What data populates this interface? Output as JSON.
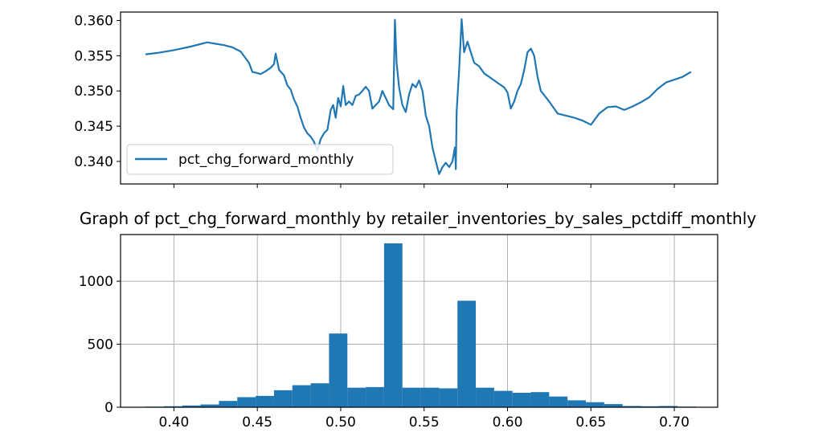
{
  "chart_data": [
    {
      "type": "line",
      "title": "",
      "xlabel": "",
      "ylabel": "",
      "xlim": [
        0.368,
        0.726
      ],
      "ylim": [
        0.3368,
        0.3612
      ],
      "xticks": [
        0.4,
        0.45,
        0.5,
        0.55,
        0.6,
        0.65,
        0.7
      ],
      "xtick_labels_visible": false,
      "yticks": [
        0.34,
        0.345,
        0.35,
        0.355,
        0.36
      ],
      "ytick_labels": [
        "0.340",
        "0.345",
        "0.350",
        "0.355",
        "0.360"
      ],
      "grid": false,
      "legend": {
        "position": "lower-left",
        "entries": [
          "pct_chg_forward_monthly"
        ]
      },
      "series": [
        {
          "name": "pct_chg_forward_monthly",
          "color": "#1f77b4",
          "x": [
            0.383,
            0.39,
            0.4,
            0.41,
            0.42,
            0.425,
            0.43,
            0.435,
            0.44,
            0.445,
            0.447,
            0.449,
            0.452,
            0.455,
            0.458,
            0.46,
            0.461,
            0.463,
            0.466,
            0.468,
            0.47,
            0.472,
            0.474,
            0.476,
            0.478,
            0.48,
            0.482,
            0.484,
            0.486,
            0.488,
            0.49,
            0.492,
            0.494,
            0.4955,
            0.497,
            0.4985,
            0.5,
            0.5015,
            0.503,
            0.505,
            0.507,
            0.509,
            0.511,
            0.513,
            0.515,
            0.517,
            0.519,
            0.521,
            0.523,
            0.525,
            0.527,
            0.529,
            0.5315,
            0.5325,
            0.5335,
            0.535,
            0.537,
            0.539,
            0.541,
            0.543,
            0.545,
            0.547,
            0.549,
            0.551,
            0.553,
            0.555,
            0.557,
            0.559,
            0.561,
            0.563,
            0.565,
            0.567,
            0.5685,
            0.569,
            0.5695,
            0.571,
            0.5725,
            0.574,
            0.576,
            0.578,
            0.58,
            0.583,
            0.586,
            0.589,
            0.592,
            0.595,
            0.598,
            0.6,
            0.602,
            0.604,
            0.606,
            0.608,
            0.61,
            0.612,
            0.614,
            0.616,
            0.618,
            0.62,
            0.625,
            0.63,
            0.635,
            0.64,
            0.645,
            0.65,
            0.655,
            0.66,
            0.665,
            0.67,
            0.675,
            0.68,
            0.685,
            0.69,
            0.695,
            0.7,
            0.705,
            0.71
          ],
          "y": [
            0.3552,
            0.3554,
            0.3558,
            0.3563,
            0.3569,
            0.3567,
            0.3565,
            0.3562,
            0.3556,
            0.354,
            0.3527,
            0.3526,
            0.3524,
            0.3528,
            0.3533,
            0.3538,
            0.3553,
            0.353,
            0.3522,
            0.3508,
            0.3502,
            0.3488,
            0.3478,
            0.3462,
            0.3448,
            0.344,
            0.3435,
            0.3428,
            0.3415,
            0.3432,
            0.344,
            0.3445,
            0.3473,
            0.348,
            0.3462,
            0.349,
            0.3478,
            0.3507,
            0.348,
            0.3485,
            0.348,
            0.3493,
            0.3495,
            0.35,
            0.3506,
            0.35,
            0.3475,
            0.348,
            0.3485,
            0.35,
            0.349,
            0.348,
            0.3474,
            0.3601,
            0.354,
            0.3505,
            0.348,
            0.347,
            0.3495,
            0.351,
            0.3505,
            0.3515,
            0.35,
            0.3465,
            0.345,
            0.342,
            0.34,
            0.3382,
            0.3392,
            0.3398,
            0.3392,
            0.34,
            0.342,
            0.3389,
            0.347,
            0.353,
            0.3602,
            0.3555,
            0.357,
            0.3555,
            0.354,
            0.3535,
            0.3525,
            0.352,
            0.3515,
            0.351,
            0.3505,
            0.3498,
            0.3475,
            0.3485,
            0.35,
            0.351,
            0.353,
            0.3555,
            0.356,
            0.355,
            0.352,
            0.35,
            0.3485,
            0.3468,
            0.3465,
            0.3462,
            0.3458,
            0.3452,
            0.3468,
            0.3477,
            0.3478,
            0.3473,
            0.3478,
            0.3484,
            0.3491,
            0.3503,
            0.3512,
            0.3516,
            0.352,
            0.3527
          ]
        }
      ]
    },
    {
      "type": "bar",
      "title": "Graph of pct_chg_forward_monthly by retailer_inventories_by_sales_pctdiff_monthly",
      "xlabel": "",
      "ylabel": "",
      "xlim": [
        0.368,
        0.726
      ],
      "ylim": [
        0,
        1370
      ],
      "xticks": [
        0.4,
        0.45,
        0.5,
        0.55,
        0.6,
        0.65,
        0.7
      ],
      "xtick_labels": [
        "0.40",
        "0.45",
        "0.50",
        "0.55",
        "0.60",
        "0.65",
        "0.70"
      ],
      "yticks": [
        0,
        500,
        1000
      ],
      "ytick_labels": [
        "0",
        "500",
        "1000"
      ],
      "grid": true,
      "bar_color": "#1f77b4",
      "bin_edges": [
        0.383,
        0.394,
        0.405,
        0.416,
        0.427,
        0.438,
        0.449,
        0.46,
        0.471,
        0.482,
        0.493,
        0.504,
        0.515,
        0.526,
        0.537,
        0.548,
        0.559,
        0.57,
        0.581,
        0.592,
        0.603,
        0.614,
        0.625,
        0.636,
        0.647,
        0.658,
        0.669,
        0.68,
        0.691,
        0.702,
        0.713
      ],
      "values": [
        5,
        8,
        14,
        22,
        50,
        80,
        90,
        135,
        175,
        190,
        585,
        155,
        160,
        1300,
        155,
        155,
        150,
        845,
        155,
        130,
        115,
        120,
        85,
        55,
        40,
        25,
        10,
        8,
        10,
        5
      ]
    }
  ]
}
